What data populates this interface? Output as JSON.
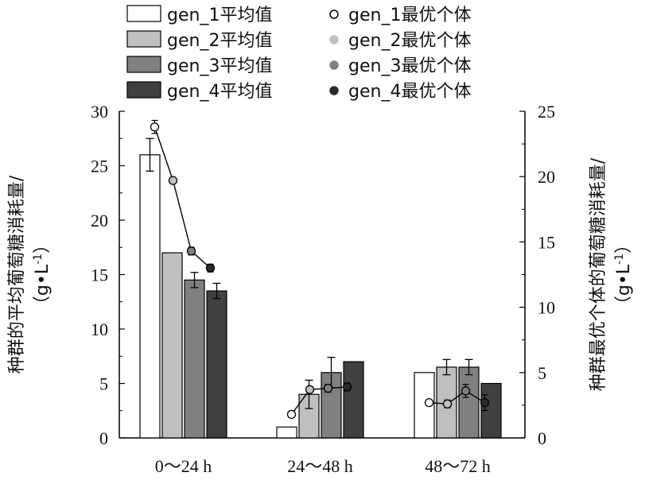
{
  "chart_data": {
    "type": "bar",
    "categories": [
      "0～24 h",
      "24～48 h",
      "48～72 h"
    ],
    "series": [
      {
        "name": "gen_1平均值",
        "values": [
          26,
          1,
          6
        ],
        "errors": [
          1.5,
          0,
          0
        ],
        "color": "#ffffff"
      },
      {
        "name": "gen_2平均值",
        "values": [
          17,
          4,
          6.5
        ],
        "errors": [
          0,
          1.3,
          0.7
        ],
        "color": "#c0c0c0"
      },
      {
        "name": "gen_3平均值",
        "values": [
          14.5,
          6,
          6.5
        ],
        "errors": [
          0.7,
          1.4,
          0.7
        ],
        "color": "#808080"
      },
      {
        "name": "gen_4平均值",
        "values": [
          13.5,
          7,
          5
        ],
        "errors": [
          0.7,
          0,
          0
        ],
        "color": "#404040"
      }
    ],
    "best_individuals": [
      {
        "name": "gen_1最优个体",
        "marker": "hollow",
        "color": "#ffffff",
        "points": [
          {
            "category": 0,
            "value": 23.8,
            "error": 0.5
          },
          {
            "category": 1,
            "value": 1.8,
            "error": 0.2
          },
          {
            "category": 2,
            "value": 2.7,
            "error": 0.2
          }
        ]
      },
      {
        "name": "gen_2最优个体",
        "marker": "filled",
        "color": "#c0c0c0",
        "points": [
          {
            "category": 0,
            "value": 19.7,
            "error": 0.2
          },
          {
            "category": 1,
            "value": 3.7,
            "error": 0.2
          },
          {
            "category": 2,
            "value": 2.6,
            "error": 0.3
          }
        ]
      },
      {
        "name": "gen_3最优个体",
        "marker": "filled",
        "color": "#808080",
        "points": [
          {
            "category": 0,
            "value": 14.3,
            "error": 0.3
          },
          {
            "category": 1,
            "value": 3.8,
            "error": 0.3
          },
          {
            "category": 2,
            "value": 3.6,
            "error": 0.5
          }
        ]
      },
      {
        "name": "gen_4最优个体",
        "marker": "filled",
        "color": "#2a2a2a",
        "points": [
          {
            "category": 0,
            "value": 13,
            "error": 0.3
          },
          {
            "category": 1,
            "value": 3.9,
            "error": 0.3
          },
          {
            "category": 2,
            "value": 2.7,
            "error": 0.6
          }
        ]
      }
    ],
    "left_axis": {
      "label_line1": "种群的平均葡萄糖消耗量/",
      "label_line2": "（g•L",
      "label_sup": "-1",
      "label_end": "）",
      "ylim": [
        0,
        30
      ],
      "ticks": [
        0,
        5,
        10,
        15,
        20,
        25,
        30
      ]
    },
    "right_axis": {
      "label_line1": "种群最优个体的葡萄糖消耗量/",
      "label_line2": "（g•L",
      "label_sup": "-1",
      "label_end": "）",
      "ylim": [
        0,
        25
      ],
      "ticks": [
        0,
        5,
        10,
        15,
        20,
        25
      ]
    },
    "legend_position": "top",
    "grid": false
  }
}
